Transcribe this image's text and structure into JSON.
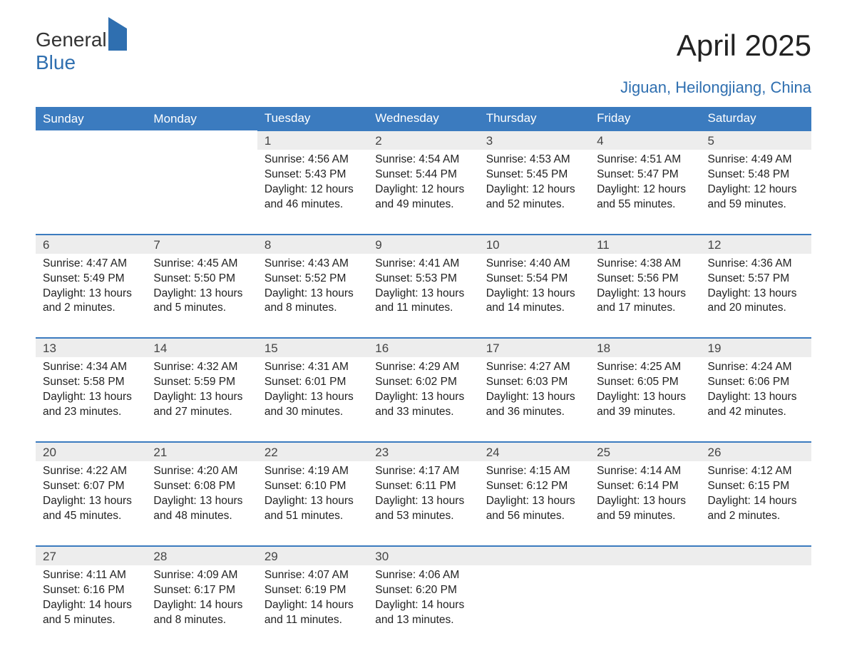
{
  "logo": {
    "line1": "General",
    "line2": "Blue"
  },
  "title": "April 2025",
  "subtitle": "Jiguan, Heilongjiang, China",
  "colors": {
    "header_bg": "#3b7bbf",
    "header_text": "#ffffff",
    "row_border": "#3b7bbf",
    "num_bg": "#ededed",
    "brand_blue": "#2f6fb0",
    "body_text": "#222222"
  },
  "dayHeaders": [
    "Sunday",
    "Monday",
    "Tuesday",
    "Wednesday",
    "Thursday",
    "Friday",
    "Saturday"
  ],
  "firstWeekdayIndex": 2,
  "daysInMonth": 30,
  "days": [
    {
      "n": 1,
      "sunrise": "4:56 AM",
      "sunset": "5:43 PM",
      "daylight_h": 12,
      "daylight_m": 46
    },
    {
      "n": 2,
      "sunrise": "4:54 AM",
      "sunset": "5:44 PM",
      "daylight_h": 12,
      "daylight_m": 49
    },
    {
      "n": 3,
      "sunrise": "4:53 AM",
      "sunset": "5:45 PM",
      "daylight_h": 12,
      "daylight_m": 52
    },
    {
      "n": 4,
      "sunrise": "4:51 AM",
      "sunset": "5:47 PM",
      "daylight_h": 12,
      "daylight_m": 55
    },
    {
      "n": 5,
      "sunrise": "4:49 AM",
      "sunset": "5:48 PM",
      "daylight_h": 12,
      "daylight_m": 59
    },
    {
      "n": 6,
      "sunrise": "4:47 AM",
      "sunset": "5:49 PM",
      "daylight_h": 13,
      "daylight_m": 2
    },
    {
      "n": 7,
      "sunrise": "4:45 AM",
      "sunset": "5:50 PM",
      "daylight_h": 13,
      "daylight_m": 5
    },
    {
      "n": 8,
      "sunrise": "4:43 AM",
      "sunset": "5:52 PM",
      "daylight_h": 13,
      "daylight_m": 8
    },
    {
      "n": 9,
      "sunrise": "4:41 AM",
      "sunset": "5:53 PM",
      "daylight_h": 13,
      "daylight_m": 11
    },
    {
      "n": 10,
      "sunrise": "4:40 AM",
      "sunset": "5:54 PM",
      "daylight_h": 13,
      "daylight_m": 14
    },
    {
      "n": 11,
      "sunrise": "4:38 AM",
      "sunset": "5:56 PM",
      "daylight_h": 13,
      "daylight_m": 17
    },
    {
      "n": 12,
      "sunrise": "4:36 AM",
      "sunset": "5:57 PM",
      "daylight_h": 13,
      "daylight_m": 20
    },
    {
      "n": 13,
      "sunrise": "4:34 AM",
      "sunset": "5:58 PM",
      "daylight_h": 13,
      "daylight_m": 23
    },
    {
      "n": 14,
      "sunrise": "4:32 AM",
      "sunset": "5:59 PM",
      "daylight_h": 13,
      "daylight_m": 27
    },
    {
      "n": 15,
      "sunrise": "4:31 AM",
      "sunset": "6:01 PM",
      "daylight_h": 13,
      "daylight_m": 30
    },
    {
      "n": 16,
      "sunrise": "4:29 AM",
      "sunset": "6:02 PM",
      "daylight_h": 13,
      "daylight_m": 33
    },
    {
      "n": 17,
      "sunrise": "4:27 AM",
      "sunset": "6:03 PM",
      "daylight_h": 13,
      "daylight_m": 36
    },
    {
      "n": 18,
      "sunrise": "4:25 AM",
      "sunset": "6:05 PM",
      "daylight_h": 13,
      "daylight_m": 39
    },
    {
      "n": 19,
      "sunrise": "4:24 AM",
      "sunset": "6:06 PM",
      "daylight_h": 13,
      "daylight_m": 42
    },
    {
      "n": 20,
      "sunrise": "4:22 AM",
      "sunset": "6:07 PM",
      "daylight_h": 13,
      "daylight_m": 45
    },
    {
      "n": 21,
      "sunrise": "4:20 AM",
      "sunset": "6:08 PM",
      "daylight_h": 13,
      "daylight_m": 48
    },
    {
      "n": 22,
      "sunrise": "4:19 AM",
      "sunset": "6:10 PM",
      "daylight_h": 13,
      "daylight_m": 51
    },
    {
      "n": 23,
      "sunrise": "4:17 AM",
      "sunset": "6:11 PM",
      "daylight_h": 13,
      "daylight_m": 53
    },
    {
      "n": 24,
      "sunrise": "4:15 AM",
      "sunset": "6:12 PM",
      "daylight_h": 13,
      "daylight_m": 56
    },
    {
      "n": 25,
      "sunrise": "4:14 AM",
      "sunset": "6:14 PM",
      "daylight_h": 13,
      "daylight_m": 59
    },
    {
      "n": 26,
      "sunrise": "4:12 AM",
      "sunset": "6:15 PM",
      "daylight_h": 14,
      "daylight_m": 2
    },
    {
      "n": 27,
      "sunrise": "4:11 AM",
      "sunset": "6:16 PM",
      "daylight_h": 14,
      "daylight_m": 5
    },
    {
      "n": 28,
      "sunrise": "4:09 AM",
      "sunset": "6:17 PM",
      "daylight_h": 14,
      "daylight_m": 8
    },
    {
      "n": 29,
      "sunrise": "4:07 AM",
      "sunset": "6:19 PM",
      "daylight_h": 14,
      "daylight_m": 11
    },
    {
      "n": 30,
      "sunrise": "4:06 AM",
      "sunset": "6:20 PM",
      "daylight_h": 14,
      "daylight_m": 13
    }
  ],
  "labels": {
    "sunrise": "Sunrise:",
    "sunset": "Sunset:",
    "daylight": "Daylight:",
    "hours": "hours",
    "and": "and",
    "minutes": "minutes."
  }
}
